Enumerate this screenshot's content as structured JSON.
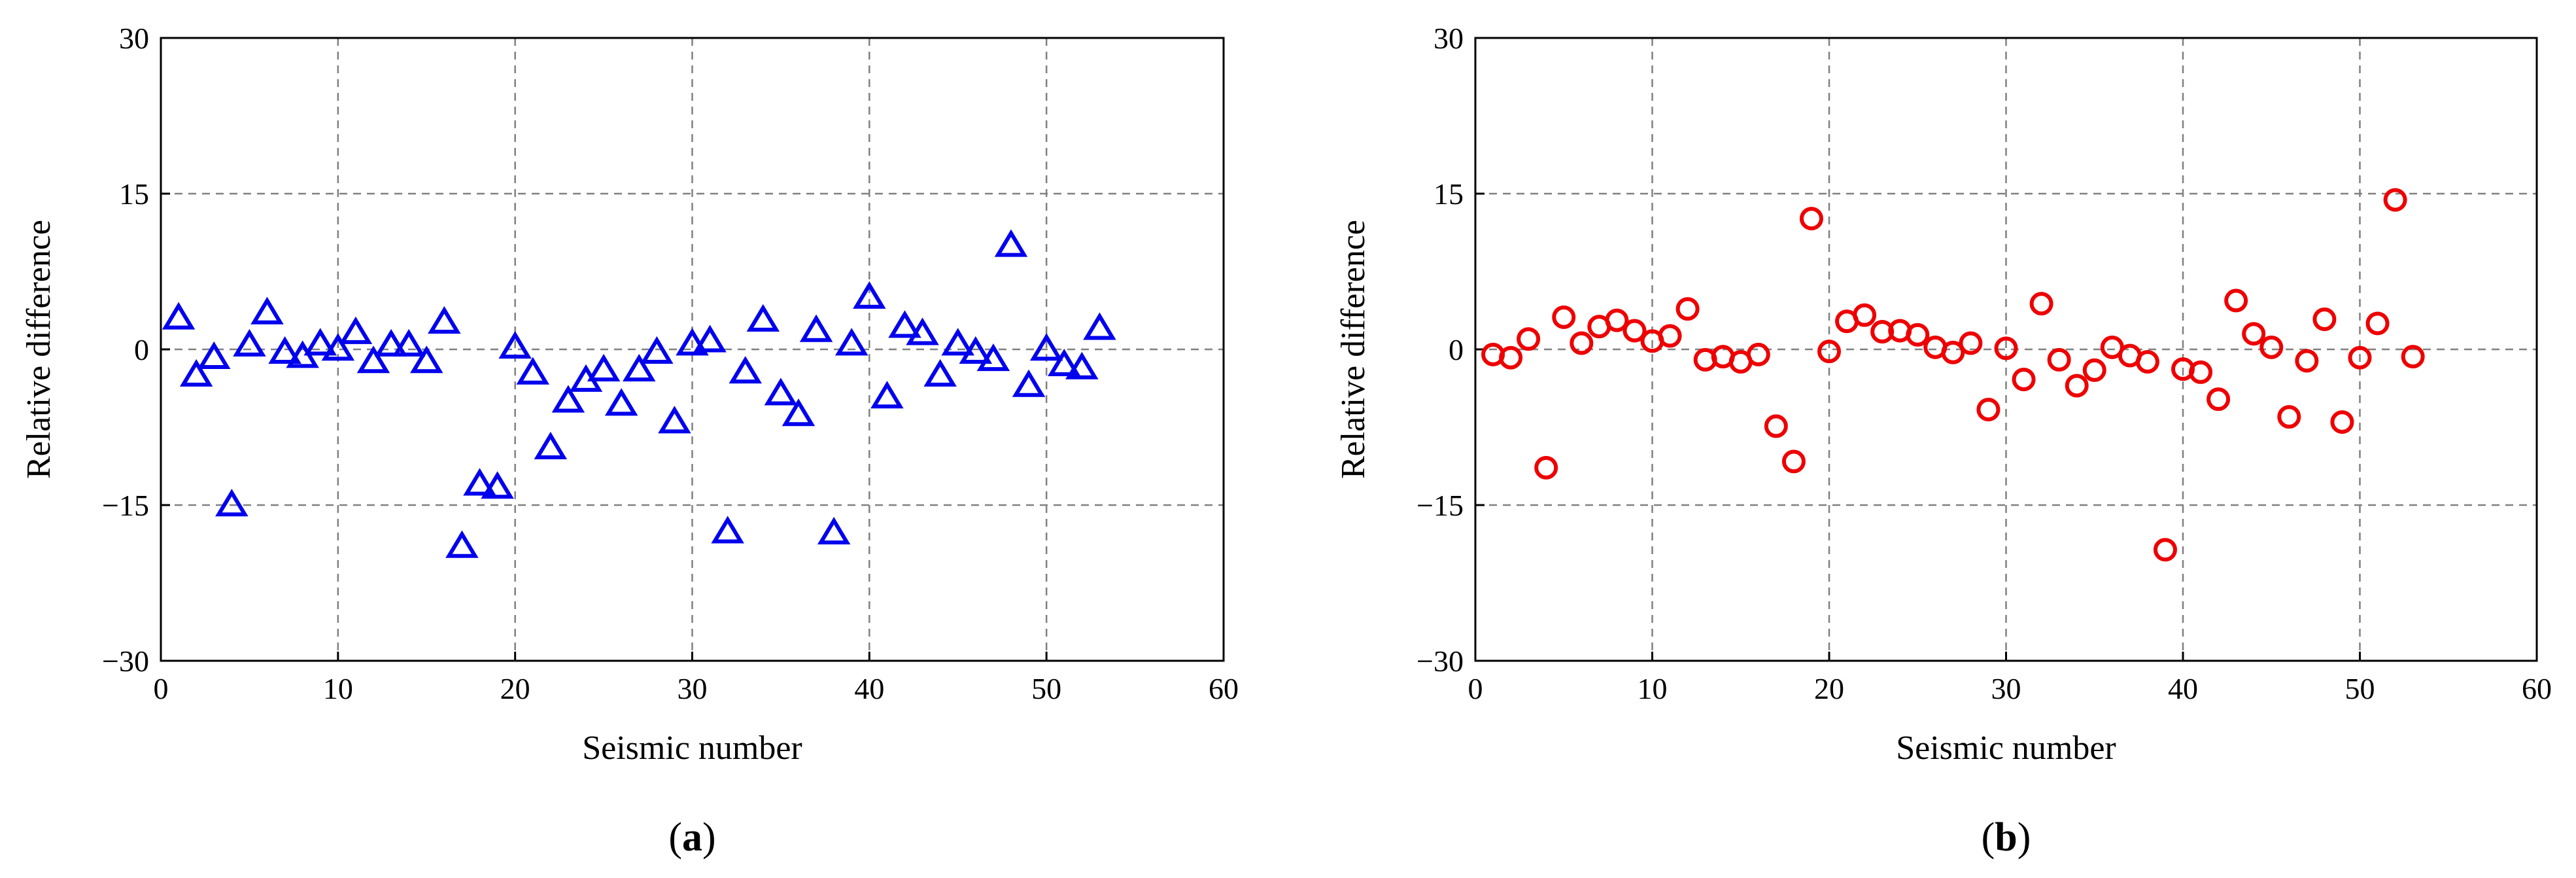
{
  "chart_data": [
    {
      "type": "scatter",
      "panel_label": "a",
      "xlabel": "Seismic number",
      "ylabel": "Relative difference",
      "xlim": [
        0,
        60
      ],
      "ylim": [
        -30,
        30
      ],
      "xticks": [
        0,
        10,
        20,
        30,
        40,
        50,
        60
      ],
      "yticks": [
        -30,
        -15,
        0,
        15,
        30
      ],
      "ytick_labels": [
        "−30",
        "−15",
        "0",
        "15",
        "30"
      ],
      "grid": true,
      "marker": "triangle",
      "color": "#0000ee",
      "x": [
        1,
        2,
        3,
        4,
        5,
        6,
        7,
        8,
        9,
        10,
        11,
        12,
        13,
        14,
        15,
        16,
        17,
        18,
        19,
        20,
        21,
        22,
        23,
        24,
        25,
        26,
        27,
        28,
        29,
        30,
        31,
        32,
        33,
        34,
        35,
        36,
        37,
        38,
        39,
        40,
        41,
        42,
        43,
        44,
        45,
        46,
        47,
        48,
        49,
        50,
        51,
        52,
        53
      ],
      "y": [
        3.0,
        -2.5,
        -0.8,
        -15.0,
        0.4,
        3.5,
        -0.3,
        -0.7,
        0.5,
        0.0,
        1.6,
        -1.2,
        0.4,
        0.4,
        -1.2,
        2.6,
        -19.0,
        -13.0,
        -13.3,
        0.2,
        -2.3,
        -9.5,
        -5.0,
        -3.0,
        -2.0,
        -5.3,
        -2.0,
        -0.3,
        -7.0,
        0.5,
        0.8,
        -17.6,
        -2.2,
        2.8,
        -4.3,
        -6.3,
        1.8,
        -17.7,
        0.5,
        5.0,
        -4.6,
        2.2,
        1.5,
        -2.5,
        0.5,
        -0.3,
        -1.0,
        10.0,
        -3.5,
        0.0,
        -1.5,
        -1.8,
        2.0
      ]
    },
    {
      "type": "scatter",
      "panel_label": "b",
      "xlabel": "Seismic number",
      "ylabel": "Relative difference",
      "xlim": [
        0,
        60
      ],
      "ylim": [
        -30,
        30
      ],
      "xticks": [
        0,
        10,
        20,
        30,
        40,
        50,
        60
      ],
      "yticks": [
        -30,
        -15,
        0,
        15,
        30
      ],
      "ytick_labels": [
        "−30",
        "−15",
        "0",
        "15",
        "30"
      ],
      "grid": true,
      "marker": "circle",
      "color": "#ee0000",
      "x": [
        1,
        2,
        3,
        4,
        5,
        6,
        7,
        8,
        9,
        10,
        11,
        12,
        13,
        14,
        15,
        16,
        17,
        18,
        19,
        20,
        21,
        22,
        23,
        24,
        25,
        26,
        27,
        28,
        29,
        30,
        31,
        32,
        33,
        34,
        35,
        36,
        37,
        38,
        39,
        40,
        41,
        42,
        43,
        44,
        45,
        46,
        47,
        48,
        49,
        50,
        51,
        52,
        53
      ],
      "y": [
        -0.5,
        -0.8,
        1.0,
        -11.4,
        3.1,
        0.6,
        2.2,
        2.8,
        1.8,
        0.8,
        1.3,
        3.9,
        -1.0,
        -0.7,
        -1.2,
        -0.5,
        -7.4,
        -10.8,
        12.6,
        -0.2,
        2.7,
        3.3,
        1.7,
        1.8,
        1.4,
        0.2,
        -0.3,
        0.6,
        -5.8,
        0.1,
        -2.9,
        4.4,
        -1.0,
        -3.5,
        -2.0,
        0.2,
        -0.6,
        -1.2,
        -19.3,
        -1.9,
        -2.2,
        -4.8,
        4.7,
        1.5,
        0.2,
        -6.5,
        -1.1,
        2.9,
        -7.0,
        -0.8,
        2.5,
        14.4,
        -0.7
      ]
    }
  ]
}
